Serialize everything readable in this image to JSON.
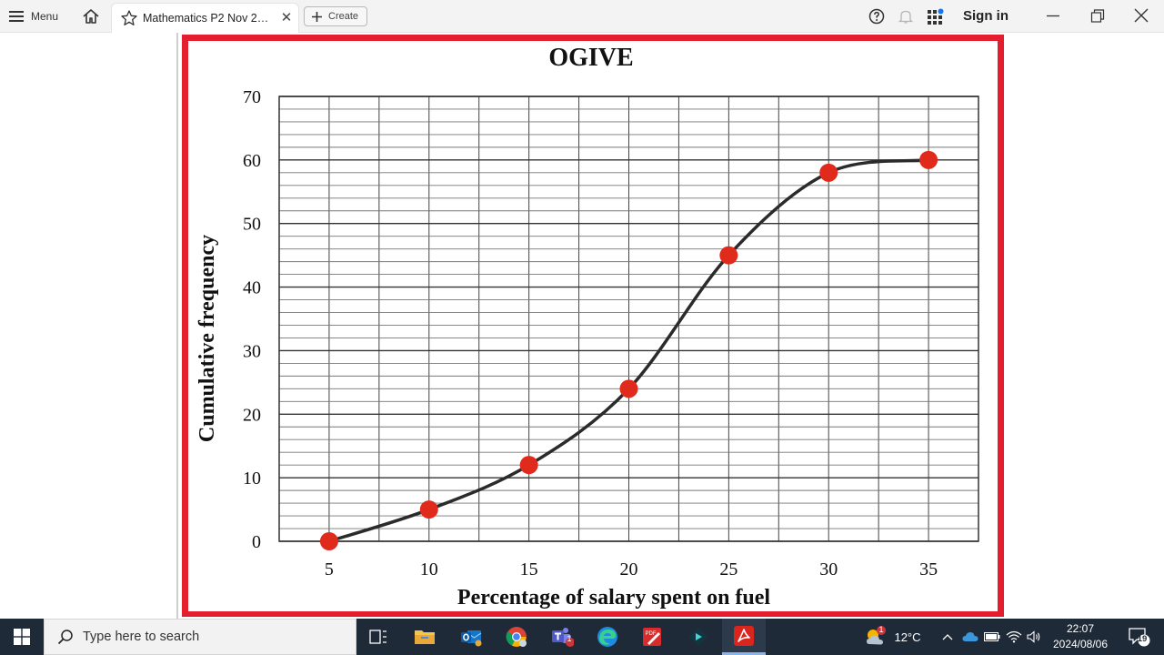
{
  "toolbar": {
    "menu_label": "Menu",
    "tab_title": "Mathematics P2 Nov 2…",
    "tab_close": "✕",
    "create_label": "Create",
    "signin_label": "Sign in"
  },
  "taskbar": {
    "search_placeholder": "Type here to search",
    "weather_temp": "12°C",
    "weather_badge": "1",
    "teams_badge": "1",
    "clock_time": "22:07",
    "clock_date": "2024/08/06",
    "notification_count": "19"
  },
  "colors": {
    "frame": "#e41e2e",
    "point": "#e02a1c",
    "curve": "#2b2b2b",
    "taskbar": "#1f2a38"
  },
  "chart_data": {
    "type": "line",
    "title": "OGIVE",
    "xlabel": "Percentage of salary spent on fuel",
    "ylabel": "Cumulative frequency",
    "x_ticks": [
      5,
      10,
      15,
      20,
      25,
      30,
      35
    ],
    "y_ticks": [
      0,
      10,
      20,
      30,
      40,
      50,
      60,
      70
    ],
    "xlim": [
      2.5,
      37.5
    ],
    "ylim": [
      0,
      70
    ],
    "grid": true,
    "points": [
      {
        "x": 5,
        "y": 0
      },
      {
        "x": 10,
        "y": 5
      },
      {
        "x": 15,
        "y": 12
      },
      {
        "x": 20,
        "y": 24
      },
      {
        "x": 25,
        "y": 45
      },
      {
        "x": 30,
        "y": 58
      },
      {
        "x": 35,
        "y": 60
      }
    ]
  }
}
